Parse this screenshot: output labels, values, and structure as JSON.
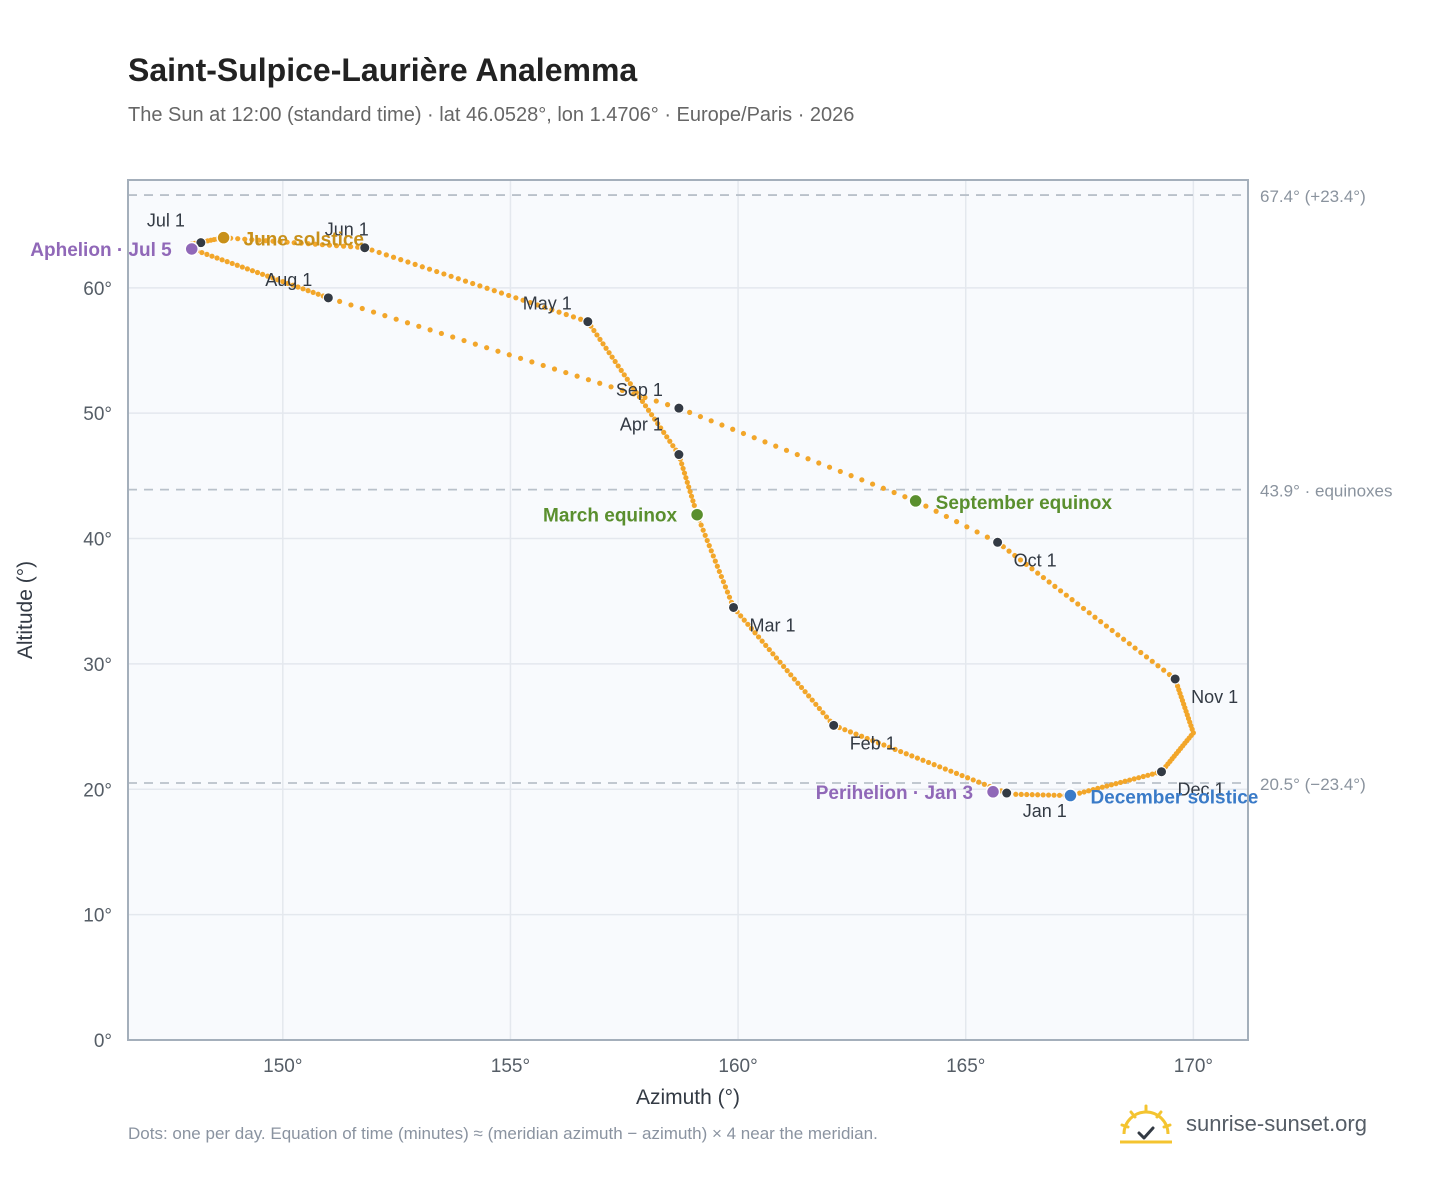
{
  "title": "Saint-Sulpice-Laurière Analemma",
  "subtitle": "The Sun at 12:00 (standard time) · lat 46.0528°, lon 1.4706° · Europe/Paris · 2026",
  "footnote": "Dots: one per day. Equation of time (minutes) ≈ (meridian azimuth − azimuth) × 4 near the meridian.",
  "brand": "sunrise-sunset.org",
  "colors": {
    "path": "#f2a62a",
    "month_marker": "#333a44",
    "solstice_june": "#c8901a",
    "solstice_december": "#3a7bc8",
    "equinox": "#5a8f2e",
    "apsis": "#9068b8",
    "reference_line": "#b9c1ca",
    "plot_bg": "#f8fafd"
  },
  "chart_data": {
    "type": "scatter",
    "xlabel": "Azimuth (°)",
    "ylabel": "Altitude (°)",
    "xlim": [
      146.6,
      171.2
    ],
    "ylim": [
      0,
      68.6
    ],
    "xticks": [
      150,
      155,
      160,
      165,
      170
    ],
    "xtick_labels": [
      "150°",
      "155°",
      "160°",
      "165°",
      "170°"
    ],
    "yticks": [
      0,
      10,
      20,
      30,
      40,
      50,
      60
    ],
    "ytick_labels": [
      "0°",
      "10°",
      "20°",
      "30°",
      "40°",
      "50°",
      "60°"
    ],
    "grid": true,
    "path_keyframes": [
      {
        "doy": 1,
        "az": 165.9,
        "alt": 19.7
      },
      {
        "doy": 32,
        "az": 162.1,
        "alt": 25.1
      },
      {
        "doy": 60,
        "az": 159.9,
        "alt": 34.5
      },
      {
        "doy": 78,
        "az": 159.1,
        "alt": 41.9
      },
      {
        "doy": 91,
        "az": 158.7,
        "alt": 46.7
      },
      {
        "doy": 121,
        "az": 156.7,
        "alt": 57.3
      },
      {
        "doy": 152,
        "az": 151.8,
        "alt": 63.2
      },
      {
        "doy": 172,
        "az": 148.7,
        "alt": 64.0
      },
      {
        "doy": 182,
        "az": 148.0,
        "alt": 63.5
      },
      {
        "doy": 186,
        "az": 148.0,
        "alt": 63.1
      },
      {
        "doy": 213,
        "az": 151.0,
        "alt": 59.2
      },
      {
        "doy": 244,
        "az": 158.7,
        "alt": 50.4
      },
      {
        "doy": 266,
        "az": 163.9,
        "alt": 43.0
      },
      {
        "doy": 274,
        "az": 165.7,
        "alt": 39.7
      },
      {
        "doy": 305,
        "az": 169.6,
        "alt": 28.8
      },
      {
        "doy": 320,
        "az": 170.0,
        "alt": 24.5
      },
      {
        "doy": 335,
        "az": 169.3,
        "alt": 21.4
      },
      {
        "doy": 355,
        "az": 167.3,
        "alt": 19.5
      },
      {
        "doy": 365,
        "az": 166.1,
        "alt": 19.6
      }
    ],
    "month_markers": [
      {
        "label": "Jan 1",
        "az": 165.9,
        "alt": 19.7
      },
      {
        "label": "Feb 1",
        "az": 162.1,
        "alt": 25.1
      },
      {
        "label": "Mar 1",
        "az": 159.9,
        "alt": 34.5
      },
      {
        "label": "Apr 1",
        "az": 158.7,
        "alt": 46.7
      },
      {
        "label": "May 1",
        "az": 156.7,
        "alt": 57.3
      },
      {
        "label": "Jun 1",
        "az": 151.8,
        "alt": 63.2
      },
      {
        "label": "Jul 1",
        "az": 148.2,
        "alt": 63.6
      },
      {
        "label": "Aug 1",
        "az": 151.0,
        "alt": 59.2
      },
      {
        "label": "Sep 1",
        "az": 158.7,
        "alt": 50.4
      },
      {
        "label": "Oct 1",
        "az": 165.7,
        "alt": 39.7
      },
      {
        "label": "Nov 1",
        "az": 169.6,
        "alt": 28.8
      },
      {
        "label": "Dec 1",
        "az": 169.3,
        "alt": 21.4
      }
    ],
    "events": [
      {
        "label": "June solstice",
        "az": 148.7,
        "alt": 64.0,
        "kind": "solstice_june"
      },
      {
        "label": "December solstice",
        "az": 167.3,
        "alt": 19.5,
        "kind": "solstice_december"
      },
      {
        "label": "March equinox",
        "az": 159.1,
        "alt": 41.9,
        "kind": "equinox"
      },
      {
        "label": "September equinox",
        "az": 163.9,
        "alt": 43.0,
        "kind": "equinox"
      },
      {
        "label": "Aphelion · Jul 5",
        "az": 148.0,
        "alt": 63.1,
        "kind": "apsis"
      },
      {
        "label": "Perihelion · Jan 3",
        "az": 165.6,
        "alt": 19.8,
        "kind": "apsis"
      }
    ],
    "reference_lines": [
      {
        "alt": 67.4,
        "label": "67.4° (+23.4°)"
      },
      {
        "alt": 43.9,
        "label": "43.9° · equinoxes"
      },
      {
        "alt": 20.5,
        "label": "20.5° (−23.4°)"
      }
    ]
  }
}
